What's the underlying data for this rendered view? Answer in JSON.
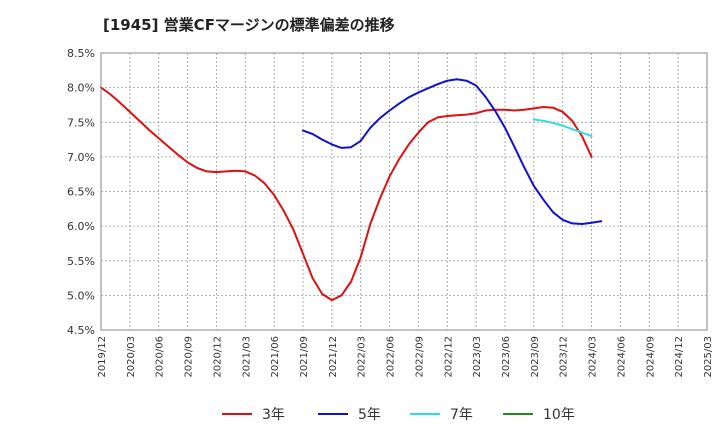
{
  "chart_data": {
    "type": "line",
    "title": "[1945]  営業CFマージンの標準偏差の推移",
    "xlabel": "",
    "ylabel": "",
    "ylim": [
      4.5,
      8.5
    ],
    "y_ticks": [
      "4.5%",
      "5.0%",
      "5.5%",
      "6.0%",
      "6.5%",
      "7.0%",
      "7.5%",
      "8.0%",
      "8.5%"
    ],
    "x_ticks": [
      "2019/12",
      "2020/03",
      "2020/06",
      "2020/09",
      "2020/12",
      "2021/03",
      "2021/06",
      "2021/09",
      "2021/12",
      "2022/03",
      "2022/06",
      "2022/09",
      "2022/12",
      "2023/03",
      "2023/06",
      "2023/09",
      "2023/12",
      "2024/03",
      "2024/06",
      "2024/09",
      "2024/12",
      "2025/03"
    ],
    "grid": true,
    "legend_position": "bottom",
    "series": [
      {
        "name": "3年",
        "color": "#dd1111",
        "values": [
          [
            "2019/12",
            8.0
          ],
          [
            "2020/01",
            7.9
          ],
          [
            "2020/02",
            7.78
          ],
          [
            "2020/03",
            7.65
          ],
          [
            "2020/04",
            7.52
          ],
          [
            "2020/05",
            7.39
          ],
          [
            "2020/06",
            7.27
          ],
          [
            "2020/07",
            7.15
          ],
          [
            "2020/08",
            7.03
          ],
          [
            "2020/09",
            6.92
          ],
          [
            "2020/10",
            6.84
          ],
          [
            "2020/11",
            6.79
          ],
          [
            "2020/12",
            6.78
          ],
          [
            "2021/01",
            6.79
          ],
          [
            "2021/02",
            6.8
          ],
          [
            "2021/03",
            6.79
          ],
          [
            "2021/04",
            6.73
          ],
          [
            "2021/05",
            6.62
          ],
          [
            "2021/06",
            6.45
          ],
          [
            "2021/07",
            6.22
          ],
          [
            "2021/08",
            5.95
          ],
          [
            "2021/09",
            5.6
          ],
          [
            "2021/10",
            5.25
          ],
          [
            "2021/11",
            5.02
          ],
          [
            "2021/12",
            4.93
          ],
          [
            "2022/01",
            5.0
          ],
          [
            "2022/02",
            5.2
          ],
          [
            "2022/03",
            5.55
          ],
          [
            "2022/04",
            6.03
          ],
          [
            "2022/05",
            6.4
          ],
          [
            "2022/06",
            6.72
          ],
          [
            "2022/07",
            6.97
          ],
          [
            "2022/08",
            7.18
          ],
          [
            "2022/09",
            7.35
          ],
          [
            "2022/10",
            7.5
          ],
          [
            "2022/11",
            7.57
          ],
          [
            "2022/12",
            7.59
          ],
          [
            "2023/01",
            7.6
          ],
          [
            "2023/02",
            7.61
          ],
          [
            "2023/03",
            7.63
          ],
          [
            "2023/04",
            7.67
          ],
          [
            "2023/05",
            7.68
          ],
          [
            "2023/06",
            7.68
          ],
          [
            "2023/07",
            7.67
          ],
          [
            "2023/08",
            7.68
          ],
          [
            "2023/09",
            7.7
          ],
          [
            "2023/10",
            7.72
          ],
          [
            "2023/11",
            7.71
          ],
          [
            "2023/12",
            7.65
          ],
          [
            "2024/01",
            7.52
          ],
          [
            "2024/02",
            7.3
          ],
          [
            "2024/03",
            7.0
          ]
        ]
      },
      {
        "name": "5年",
        "color": "#1111cc",
        "values": [
          [
            "2021/09",
            7.38
          ],
          [
            "2021/10",
            7.33
          ],
          [
            "2021/11",
            7.25
          ],
          [
            "2021/12",
            7.18
          ],
          [
            "2022/01",
            7.13
          ],
          [
            "2022/02",
            7.14
          ],
          [
            "2022/03",
            7.23
          ],
          [
            "2022/04",
            7.42
          ],
          [
            "2022/05",
            7.56
          ],
          [
            "2022/06",
            7.67
          ],
          [
            "2022/07",
            7.77
          ],
          [
            "2022/08",
            7.86
          ],
          [
            "2022/09",
            7.93
          ],
          [
            "2022/10",
            7.99
          ],
          [
            "2022/11",
            8.05
          ],
          [
            "2022/12",
            8.1
          ],
          [
            "2023/01",
            8.12
          ],
          [
            "2023/02",
            8.1
          ],
          [
            "2023/03",
            8.03
          ],
          [
            "2023/04",
            7.86
          ],
          [
            "2023/05",
            7.66
          ],
          [
            "2023/06",
            7.42
          ],
          [
            "2023/07",
            7.14
          ],
          [
            "2023/08",
            6.85
          ],
          [
            "2023/09",
            6.58
          ],
          [
            "2023/10",
            6.38
          ],
          [
            "2023/11",
            6.2
          ],
          [
            "2023/12",
            6.09
          ],
          [
            "2024/01",
            6.04
          ],
          [
            "2024/02",
            6.03
          ],
          [
            "2024/03",
            6.05
          ],
          [
            "2024/04",
            6.07
          ]
        ]
      },
      {
        "name": "7年",
        "color": "#33dddd",
        "values": [
          [
            "2023/09",
            7.54
          ],
          [
            "2023/10",
            7.52
          ],
          [
            "2023/11",
            7.49
          ],
          [
            "2023/12",
            7.45
          ],
          [
            "2024/01",
            7.4
          ],
          [
            "2024/02",
            7.35
          ],
          [
            "2024/03",
            7.3
          ]
        ]
      },
      {
        "name": "10年",
        "color": "#228822",
        "values": []
      }
    ]
  }
}
